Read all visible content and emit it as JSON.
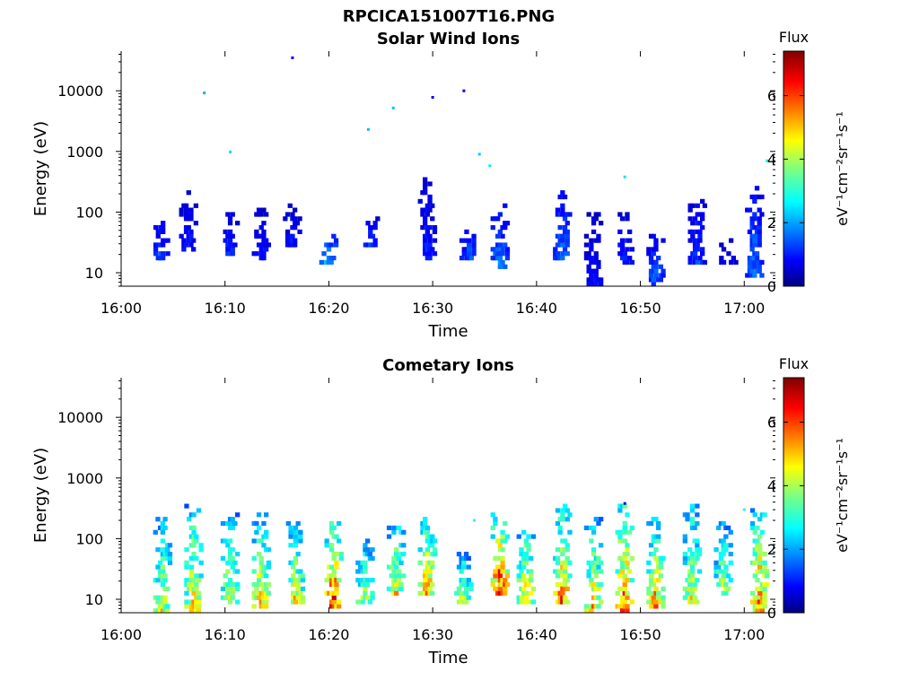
{
  "figure": {
    "title": "RPCICA151007T16.PNG"
  },
  "chart_data": [
    {
      "type": "heatmap",
      "title": "Solar Wind Ions",
      "xlabel": "Time",
      "ylabel": "Energy (eV)",
      "xlim": [
        "16:00",
        "17:03"
      ],
      "xticks": [
        "16:00",
        "16:10",
        "16:20",
        "16:30",
        "16:40",
        "16:50",
        "17:00"
      ],
      "yscale": "log",
      "ylim": [
        6,
        45000
      ],
      "yticks": [
        "10",
        "100",
        "1000",
        "10000"
      ],
      "colorbar": {
        "title": "Flux",
        "label": "eV⁻¹cm⁻²sr⁻¹s⁻¹",
        "range": [
          0,
          7.4
        ],
        "ticks": [
          "0",
          "2",
          "4",
          "6"
        ],
        "colormap": "jet"
      },
      "bursts": [
        {
          "time": "16:03.8",
          "e_low": 15,
          "e_high": 80,
          "flux": 1.5
        },
        {
          "time": "16:06.5",
          "e_low": 20,
          "e_high": 200,
          "flux": 1.2
        },
        {
          "time": "16:10.5",
          "e_low": 18,
          "e_high": 90,
          "flux": 1.3
        },
        {
          "time": "16:13.5",
          "e_low": 16,
          "e_high": 120,
          "flux": 1.2
        },
        {
          "time": "16:16.5",
          "e_low": 25,
          "e_high": 130,
          "flux": 1.1
        },
        {
          "time": "16:20.0",
          "e_low": 12,
          "e_high": 45,
          "flux": 2.3
        },
        {
          "time": "16:24.0",
          "e_low": 25,
          "e_high": 90,
          "flux": 1.4
        },
        {
          "time": "16:29.5",
          "e_low": 15,
          "e_high": 320,
          "flux": 1.3
        },
        {
          "time": "16:33.5",
          "e_low": 15,
          "e_high": 60,
          "flux": 1.6
        },
        {
          "time": "16:36.5",
          "e_low": 10,
          "e_high": 120,
          "flux": 2.0
        },
        {
          "time": "16:42.5",
          "e_low": 15,
          "e_high": 240,
          "flux": 1.8
        },
        {
          "time": "16:45.5",
          "e_low": 6,
          "e_high": 90,
          "flux": 1.1
        },
        {
          "time": "16:48.5",
          "e_low": 12,
          "e_high": 110,
          "flux": 1.3
        },
        {
          "time": "16:51.5",
          "e_low": 6,
          "e_high": 40,
          "flux": 1.7
        },
        {
          "time": "16:55.5",
          "e_low": 12,
          "e_high": 180,
          "flux": 1.4
        },
        {
          "time": "16:58.5",
          "e_low": 12,
          "e_high": 40,
          "flux": 1.0
        },
        {
          "time": "17:01.0",
          "e_low": 8,
          "e_high": 280,
          "flux": 1.8
        }
      ],
      "outliers": [
        {
          "time": "16:08.0",
          "energy": 9200,
          "flux": 2.2
        },
        {
          "time": "16:10.5",
          "energy": 980,
          "flux": 2.5
        },
        {
          "time": "16:16.5",
          "energy": 35000,
          "flux": 0.8
        },
        {
          "time": "16:23.8",
          "energy": 2300,
          "flux": 2.3
        },
        {
          "time": "16:26.2",
          "energy": 5200,
          "flux": 2.3
        },
        {
          "time": "16:30.0",
          "energy": 7800,
          "flux": 0.9
        },
        {
          "time": "16:33.0",
          "energy": 10000,
          "flux": 0.8
        },
        {
          "time": "16:34.5",
          "energy": 900,
          "flux": 2.4
        },
        {
          "time": "16:35.5",
          "energy": 580,
          "flux": 2.6
        },
        {
          "time": "16:48.5",
          "energy": 380,
          "flux": 2.6
        },
        {
          "time": "17:02.2",
          "energy": 700,
          "flux": 2.7
        }
      ]
    },
    {
      "type": "heatmap",
      "title": "Cometary Ions",
      "xlabel": "Time",
      "ylabel": "Energy (eV)",
      "xlim": [
        "16:00",
        "17:03"
      ],
      "xticks": [
        "16:00",
        "16:10",
        "16:20",
        "16:30",
        "16:40",
        "16:50",
        "17:00"
      ],
      "yscale": "log",
      "ylim": [
        6,
        45000
      ],
      "yticks": [
        "10",
        "100",
        "1000",
        "10000"
      ],
      "colorbar": {
        "title": "Flux",
        "label": "eV⁻¹cm⁻²sr⁻¹s⁻¹",
        "range": [
          0,
          7.4
        ],
        "ticks": [
          "0",
          "2",
          "4",
          "6"
        ],
        "colormap": "jet"
      },
      "bursts": [
        {
          "time": "16:04.0",
          "e_low": 6,
          "e_high": 200,
          "flux": 4.3
        },
        {
          "time": "16:07.0",
          "e_low": 6,
          "e_high": 350,
          "flux": 4.8
        },
        {
          "time": "16:10.5",
          "e_low": 8,
          "e_high": 250,
          "flux": 4.3
        },
        {
          "time": "16:13.5",
          "e_low": 7,
          "e_high": 250,
          "flux": 4.8
        },
        {
          "time": "16:16.8",
          "e_low": 8,
          "e_high": 200,
          "flux": 4.6
        },
        {
          "time": "16:20.5",
          "e_low": 7,
          "e_high": 180,
          "flux": 6.2
        },
        {
          "time": "16:23.5",
          "e_low": 8,
          "e_high": 100,
          "flux": 4.1
        },
        {
          "time": "16:26.5",
          "e_low": 10,
          "e_high": 250,
          "flux": 4.6
        },
        {
          "time": "16:29.5",
          "e_low": 10,
          "e_high": 260,
          "flux": 5.2
        },
        {
          "time": "16:33.0",
          "e_low": 8,
          "e_high": 60,
          "flux": 4.1
        },
        {
          "time": "16:36.5",
          "e_low": 10,
          "e_high": 320,
          "flux": 6.4
        },
        {
          "time": "16:39.0",
          "e_low": 8,
          "e_high": 140,
          "flux": 5.0
        },
        {
          "time": "16:42.5",
          "e_low": 8,
          "e_high": 320,
          "flux": 5.6
        },
        {
          "time": "16:45.5",
          "e_low": 6,
          "e_high": 220,
          "flux": 5.0
        },
        {
          "time": "16:48.5",
          "e_low": 6,
          "e_high": 320,
          "flux": 6.0
        },
        {
          "time": "16:51.5",
          "e_low": 7,
          "e_high": 220,
          "flux": 5.2
        },
        {
          "time": "16:55.0",
          "e_low": 8,
          "e_high": 320,
          "flux": 4.6
        },
        {
          "time": "16:58.0",
          "e_low": 10,
          "e_high": 170,
          "flux": 4.3
        },
        {
          "time": "17:01.5",
          "e_low": 6,
          "e_high": 320,
          "flux": 5.6
        }
      ],
      "outliers": [
        {
          "time": "16:48.5",
          "energy": 380,
          "flux": 0.6
        },
        {
          "time": "16:34.0",
          "energy": 200,
          "flux": 3.0
        },
        {
          "time": "17:00.0",
          "energy": 300,
          "flux": 3.0
        }
      ]
    }
  ]
}
